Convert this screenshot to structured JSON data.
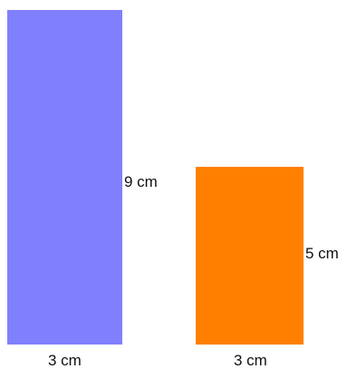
{
  "shapes": [
    {
      "id": "tall",
      "fill": "#8080ff",
      "width_label": "3 cm",
      "height_label": "9 cm"
    },
    {
      "id": "short",
      "fill": "#ff8000",
      "width_label": "3 cm",
      "height_label": "5 cm"
    }
  ]
}
